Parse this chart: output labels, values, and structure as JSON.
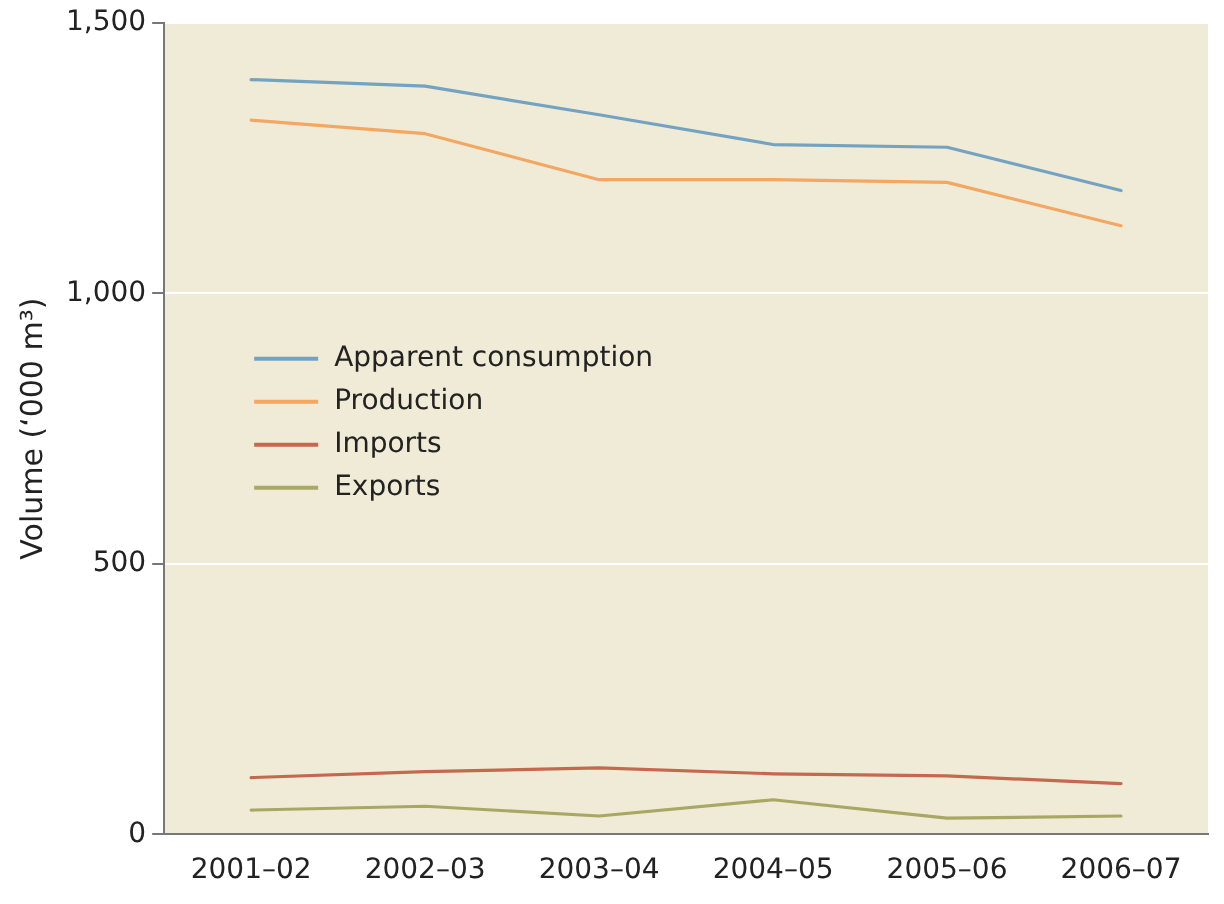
{
  "chart_data": {
    "type": "line",
    "ylabel": "Volume (‘000 m³)",
    "categories": [
      "2001–02",
      "2002–03",
      "2003–04",
      "2004–05",
      "2005–06",
      "2006–07"
    ],
    "series": [
      {
        "name": "Apparent consumption",
        "color": "#74a3c2",
        "values": [
          1395,
          1383,
          1330,
          1275,
          1270,
          1190
        ]
      },
      {
        "name": "Production",
        "color": "#f2a862",
        "values": [
          1320,
          1295,
          1210,
          1210,
          1205,
          1125
        ]
      },
      {
        "name": "Imports",
        "color": "#c4694f",
        "values": [
          105,
          116,
          123,
          112,
          108,
          94
        ]
      },
      {
        "name": "Exports",
        "color": "#a8a865",
        "values": [
          45,
          52,
          34,
          64,
          30,
          34
        ]
      }
    ],
    "ylim": [
      0,
      1500
    ],
    "yticks": [
      0,
      500,
      {
        "value": 1000,
        "label": "1,000"
      },
      {
        "value": 1500,
        "label": "1,500"
      }
    ],
    "grid": "y",
    "legend": "top left",
    "marker": "none",
    "line_style": "solid"
  }
}
